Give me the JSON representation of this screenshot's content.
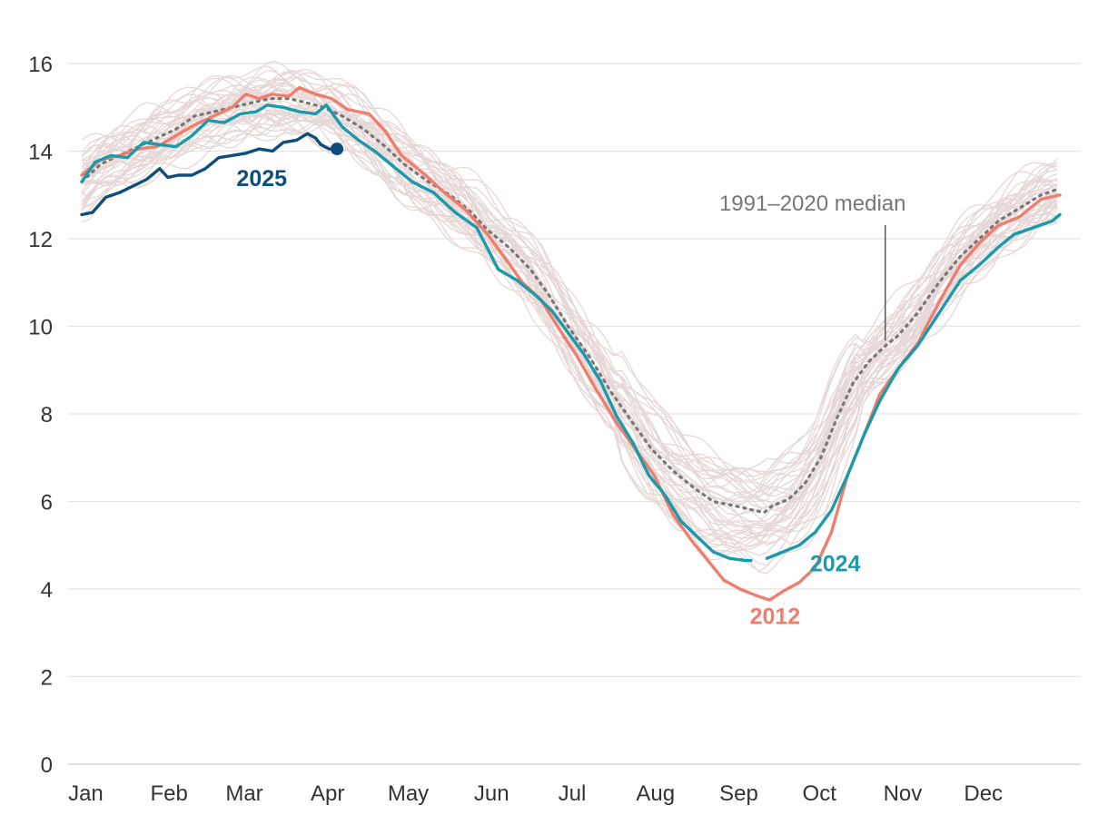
{
  "chart_data": {
    "type": "line",
    "title": "",
    "xlabel": "",
    "ylabel": "",
    "xlim": [
      1,
      366
    ],
    "ylim": [
      0,
      16
    ],
    "grid": true,
    "y_ticks": [
      0,
      2,
      4,
      6,
      8,
      10,
      12,
      14,
      16
    ],
    "x_ticks": [
      {
        "label": "Jan",
        "day": 1
      },
      {
        "label": "Feb",
        "day": 32
      },
      {
        "label": "Mar",
        "day": 60
      },
      {
        "label": "Apr",
        "day": 91
      },
      {
        "label": "May",
        "day": 121
      },
      {
        "label": "Jun",
        "day": 152
      },
      {
        "label": "Jul",
        "day": 182
      },
      {
        "label": "Aug",
        "day": 213
      },
      {
        "label": "Sep",
        "day": 244
      },
      {
        "label": "Oct",
        "day": 274
      },
      {
        "label": "Nov",
        "day": 305
      },
      {
        "label": "Dec",
        "day": 335
      }
    ],
    "background_years": {
      "description": "individual years, light lines",
      "color": "#e6d8d6",
      "count": 44
    },
    "series": [
      {
        "name": "1991–2020 median",
        "color": "#777777",
        "style": "dotted",
        "points": [
          [
            1,
            13.3
          ],
          [
            8,
            13.7
          ],
          [
            15,
            13.9
          ],
          [
            22,
            14.1
          ],
          [
            29,
            14.3
          ],
          [
            36,
            14.5
          ],
          [
            43,
            14.8
          ],
          [
            50,
            14.9
          ],
          [
            57,
            15.0
          ],
          [
            64,
            15.1
          ],
          [
            71,
            15.2
          ],
          [
            78,
            15.2
          ],
          [
            85,
            15.1
          ],
          [
            91,
            15.0
          ],
          [
            98,
            14.8
          ],
          [
            106,
            14.5
          ],
          [
            114,
            14.1
          ],
          [
            121,
            13.7
          ],
          [
            130,
            13.3
          ],
          [
            138,
            13.0
          ],
          [
            146,
            12.6
          ],
          [
            152,
            12.2
          ],
          [
            160,
            11.8
          ],
          [
            168,
            11.3
          ],
          [
            175,
            10.7
          ],
          [
            182,
            10.0
          ],
          [
            190,
            9.3
          ],
          [
            198,
            8.5
          ],
          [
            206,
            7.8
          ],
          [
            213,
            7.2
          ],
          [
            221,
            6.7
          ],
          [
            229,
            6.3
          ],
          [
            236,
            6.0
          ],
          [
            244,
            5.9
          ],
          [
            251,
            5.8
          ],
          [
            255,
            5.75
          ],
          [
            258,
            5.9
          ],
          [
            264,
            6.05
          ],
          [
            270,
            6.4
          ],
          [
            276,
            7.0
          ],
          [
            282,
            7.9
          ],
          [
            288,
            8.7
          ],
          [
            294,
            9.2
          ],
          [
            300,
            9.55
          ],
          [
            305,
            9.8
          ],
          [
            312,
            10.3
          ],
          [
            320,
            11.0
          ],
          [
            328,
            11.6
          ],
          [
            335,
            12.0
          ],
          [
            342,
            12.4
          ],
          [
            350,
            12.7
          ],
          [
            358,
            13.0
          ],
          [
            365,
            13.15
          ]
        ]
      },
      {
        "name": "2012",
        "label": "2012",
        "color": "#ef7e6f",
        "style": "solid",
        "points": [
          [
            1,
            13.45
          ],
          [
            8,
            13.8
          ],
          [
            15,
            13.9
          ],
          [
            22,
            14.05
          ],
          [
            29,
            14.1
          ],
          [
            36,
            14.35
          ],
          [
            43,
            14.6
          ],
          [
            50,
            14.8
          ],
          [
            57,
            15.0
          ],
          [
            62,
            15.3
          ],
          [
            67,
            15.2
          ],
          [
            72,
            15.3
          ],
          [
            78,
            15.25
          ],
          [
            82,
            15.45
          ],
          [
            88,
            15.3
          ],
          [
            94,
            15.2
          ],
          [
            100,
            14.95
          ],
          [
            108,
            14.85
          ],
          [
            114,
            14.45
          ],
          [
            120,
            13.9
          ],
          [
            128,
            13.5
          ],
          [
            136,
            13.05
          ],
          [
            144,
            12.65
          ],
          [
            152,
            12.1
          ],
          [
            158,
            11.6
          ],
          [
            165,
            11.0
          ],
          [
            172,
            10.6
          ],
          [
            178,
            10.0
          ],
          [
            185,
            9.35
          ],
          [
            192,
            8.6
          ],
          [
            200,
            7.8
          ],
          [
            207,
            7.2
          ],
          [
            214,
            6.6
          ],
          [
            221,
            5.7
          ],
          [
            228,
            5.1
          ],
          [
            234,
            4.65
          ],
          [
            240,
            4.2
          ],
          [
            246,
            4.0
          ],
          [
            252,
            3.85
          ],
          [
            257,
            3.75
          ],
          [
            262,
            3.95
          ],
          [
            268,
            4.15
          ],
          [
            274,
            4.5
          ],
          [
            280,
            5.3
          ],
          [
            286,
            6.6
          ],
          [
            292,
            7.5
          ],
          [
            298,
            8.45
          ],
          [
            305,
            9.05
          ],
          [
            312,
            9.6
          ],
          [
            320,
            10.55
          ],
          [
            328,
            11.4
          ],
          [
            335,
            11.9
          ],
          [
            342,
            12.3
          ],
          [
            350,
            12.5
          ],
          [
            358,
            12.9
          ],
          [
            365,
            13.0
          ]
        ]
      },
      {
        "name": "2024",
        "label": "2024",
        "color": "#1a9aab",
        "style": "solid",
        "points": [
          [
            1,
            13.3
          ],
          [
            6,
            13.75
          ],
          [
            12,
            13.9
          ],
          [
            18,
            13.85
          ],
          [
            24,
            14.2
          ],
          [
            30,
            14.15
          ],
          [
            36,
            14.1
          ],
          [
            42,
            14.35
          ],
          [
            48,
            14.7
          ],
          [
            54,
            14.65
          ],
          [
            60,
            14.85
          ],
          [
            66,
            14.9
          ],
          [
            70,
            15.05
          ],
          [
            76,
            15.0
          ],
          [
            82,
            14.9
          ],
          [
            88,
            14.85
          ],
          [
            92,
            15.05
          ],
          [
            98,
            14.55
          ],
          [
            104,
            14.25
          ],
          [
            110,
            14.0
          ],
          [
            116,
            13.7
          ],
          [
            124,
            13.3
          ],
          [
            132,
            13.05
          ],
          [
            140,
            12.6
          ],
          [
            148,
            12.25
          ],
          [
            156,
            11.3
          ],
          [
            163,
            11.05
          ],
          [
            170,
            10.7
          ],
          [
            176,
            10.35
          ],
          [
            182,
            9.85
          ],
          [
            188,
            9.35
          ],
          [
            194,
            8.75
          ],
          [
            200,
            7.95
          ],
          [
            206,
            7.35
          ],
          [
            212,
            6.6
          ],
          [
            218,
            6.15
          ],
          [
            224,
            5.55
          ],
          [
            230,
            5.2
          ],
          [
            236,
            4.85
          ],
          [
            242,
            4.7
          ],
          [
            248,
            4.65
          ],
          [
            250,
            4.65
          ],
          null,
          [
            256,
            4.7
          ],
          [
            262,
            4.85
          ],
          [
            268,
            5.0
          ],
          [
            274,
            5.3
          ],
          [
            280,
            5.8
          ],
          [
            286,
            6.6
          ],
          [
            292,
            7.5
          ],
          [
            298,
            8.3
          ],
          [
            305,
            9.05
          ],
          [
            312,
            9.55
          ],
          [
            320,
            10.3
          ],
          [
            328,
            11.05
          ],
          [
            335,
            11.4
          ],
          [
            342,
            11.8
          ],
          [
            348,
            12.1
          ],
          [
            355,
            12.25
          ],
          [
            362,
            12.4
          ],
          [
            365,
            12.55
          ]
        ]
      },
      {
        "name": "2025",
        "label": "2025",
        "color": "#0f4d7a",
        "style": "solid",
        "end_marker": true,
        "points": [
          [
            1,
            12.55
          ],
          [
            5,
            12.6
          ],
          [
            10,
            12.95
          ],
          [
            15,
            13.05
          ],
          [
            20,
            13.2
          ],
          [
            25,
            13.35
          ],
          [
            30,
            13.6
          ],
          [
            33,
            13.4
          ],
          [
            37,
            13.45
          ],
          [
            42,
            13.45
          ],
          [
            47,
            13.6
          ],
          [
            52,
            13.85
          ],
          [
            57,
            13.9
          ],
          [
            62,
            13.95
          ],
          [
            67,
            14.05
          ],
          [
            72,
            14.0
          ],
          [
            76,
            14.2
          ],
          [
            81,
            14.25
          ],
          [
            85,
            14.4
          ],
          [
            88,
            14.3
          ],
          [
            90,
            14.15
          ],
          [
            93,
            14.05
          ],
          [
            96,
            14.05
          ]
        ]
      }
    ],
    "annotations": [
      {
        "text": "1991–2020 median",
        "day": 300,
        "value": 9.55
      }
    ]
  }
}
